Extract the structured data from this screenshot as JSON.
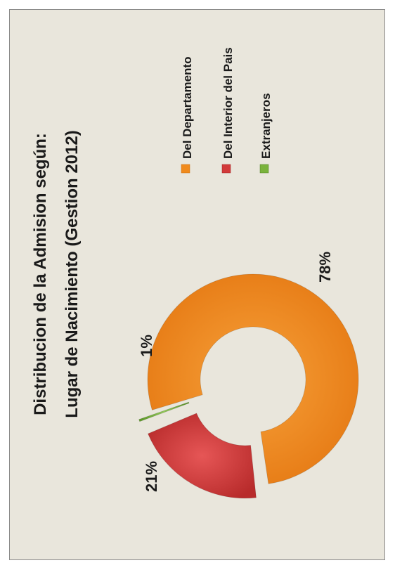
{
  "chart_data": {
    "type": "pie",
    "variant": "exploded-donut",
    "orientation": "rotated-90-ccw",
    "title_lines": [
      "Distribucion de la Admision según:",
      "Lugar de Nacimiento (Gestion 2012)"
    ],
    "categories": [
      "Del Departamento",
      "Del Interior del Pais",
      "Extranjeros"
    ],
    "values": [
      78,
      21,
      1
    ],
    "value_labels": [
      "78%",
      "21%",
      "1%"
    ],
    "colors": [
      "#f08a1c",
      "#d23a3a",
      "#7ab33c"
    ],
    "legend_placement": "right-rotated"
  }
}
